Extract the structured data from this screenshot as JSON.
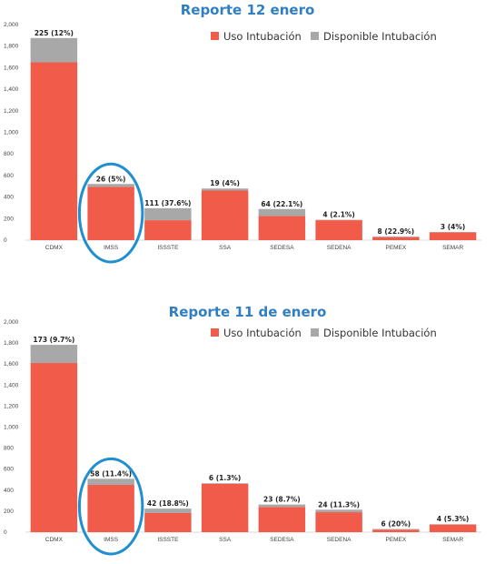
{
  "colors": {
    "uso": "#f05b4a",
    "disponible": "#a8a8a8",
    "title": "#2f7fc2",
    "highlight": "#1f8fd0"
  },
  "chart_data": [
    {
      "type": "bar",
      "stacked": true,
      "title": "Reporte 12 enero",
      "categories": [
        "CDMX",
        "IMSS",
        "ISSSTE",
        "SSA",
        "SEDESA",
        "SEDENA",
        "PEMEX",
        "SEMAR"
      ],
      "series": [
        {
          "name": "Uso Intubación",
          "values": [
            1650,
            495,
            185,
            460,
            225,
            185,
            27,
            72
          ]
        },
        {
          "name": "Disponible Intubación",
          "values": [
            225,
            26,
            111,
            19,
            64,
            4,
            8,
            3
          ]
        }
      ],
      "data_labels": [
        "225 (12%)",
        "26 (5%)",
        "111 (37.6%)",
        "19 (4%)",
        "64 (22.1%)",
        "4 (2.1%)",
        "8 (22.9%)",
        "3 (4%)"
      ],
      "yticks": [
        "0",
        "200",
        "400",
        "600",
        "800",
        "1,000",
        "1,200",
        "1,400",
        "1,600",
        "1,800",
        "2,000"
      ],
      "ylim": [
        0,
        2000
      ],
      "legend": "top-right",
      "highlight_category": "IMSS"
    },
    {
      "type": "bar",
      "stacked": true,
      "title": "Reporte 11 de enero",
      "categories": [
        "CDMX",
        "IMSS",
        "ISSSTE",
        "SSA",
        "SEDESA",
        "SEDENA",
        "PEMEX",
        "SEMAR"
      ],
      "series": [
        {
          "name": "Uso Intubación",
          "values": [
            1610,
            450,
            182,
            460,
            240,
            190,
            24,
            72
          ]
        },
        {
          "name": "Disponible Intubación",
          "values": [
            173,
            58,
            42,
            6,
            23,
            24,
            6,
            4
          ]
        }
      ],
      "data_labels": [
        "173 (9.7%)",
        "58 (11.4%)",
        "42 (18.8%)",
        "6 (1.3%)",
        "23 (8.7%)",
        "24 (11.3%)",
        "6 (20%)",
        "4 (5.3%)"
      ],
      "yticks": [
        "0",
        "200",
        "400",
        "600",
        "800",
        "1,000",
        "1,200",
        "1,400",
        "1,600",
        "1,800",
        "2,000"
      ],
      "ylim": [
        0,
        2000
      ],
      "legend": "top-right",
      "highlight_category": "IMSS"
    }
  ]
}
